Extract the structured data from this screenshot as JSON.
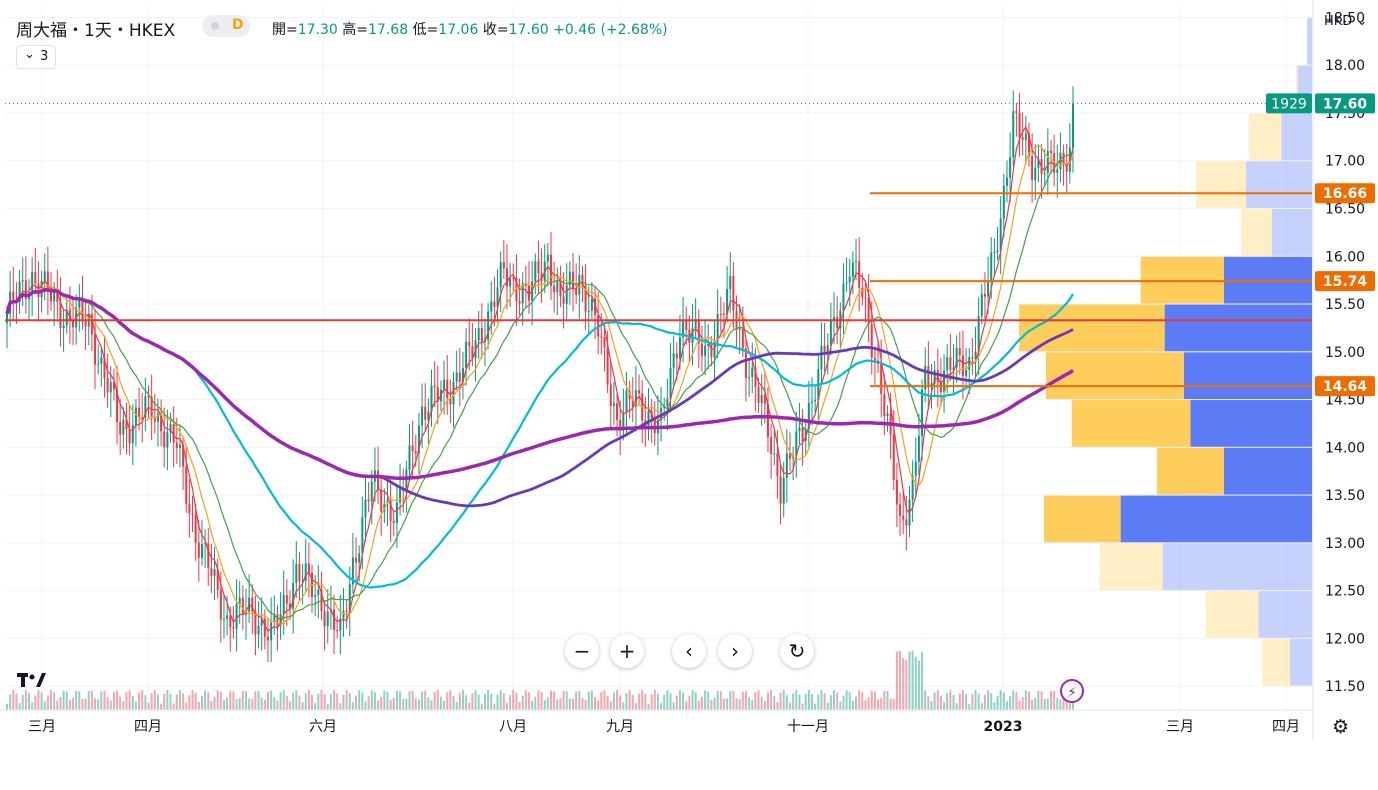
{
  "header": {
    "symbol": "周大福・1天・HKEX",
    "interval_badge": "D",
    "indicator_count": "3",
    "currency": "HKD",
    "ohlc": [
      {
        "label": "開=",
        "value": "17.30"
      },
      {
        "label": "高=",
        "value": "17.68"
      },
      {
        "label": "低=",
        "value": "17.06"
      },
      {
        "label": "收=",
        "value": "17.60"
      },
      {
        "label": "",
        "value": "+0.46 (+2.68%)"
      }
    ]
  },
  "controls": {
    "zoom_out": "−",
    "zoom_in": "+",
    "scroll_left": "‹",
    "scroll_right": "›",
    "reset": "↻"
  },
  "icons": {
    "logo": "tradingview-logo-icon",
    "bolt": "lightning-icon",
    "settings": "gear-icon"
  },
  "colors": {
    "up": "#089981",
    "down": "#f23645",
    "ma_fast": "#f23645",
    "ma_orange": "#f7a21b",
    "ma_green": "#43a047",
    "ma_cyan": "#00bcd4",
    "ma_violet": "#673ab7",
    "ma_purple": "#9c27b0",
    "hline_orange": "#ef6c00",
    "hline_red": "#e53935",
    "vp_up": "#5b7cf5",
    "vp_down": "#ffcd5c"
  },
  "chart_data": {
    "type": "candlestick",
    "y_axis": {
      "ticks": [
        "18.50",
        "18.00",
        "17.50",
        "17.00",
        "16.50",
        "16.00",
        "15.50",
        "15.00",
        "14.50",
        "14.00",
        "13.50",
        "13.00",
        "12.50",
        "12.00",
        "11.50"
      ],
      "range": [
        11.25,
        18.62
      ]
    },
    "x_axis": {
      "ticks": [
        "三月",
        "四月",
        "六月",
        "八月",
        "九月",
        "十一月",
        "2023",
        "三月",
        "四月"
      ]
    },
    "last_price": {
      "ticker_label": "1929",
      "value": "17.60"
    },
    "price_labels": [
      {
        "value": "16.66",
        "price": 16.66
      },
      {
        "value": "15.74",
        "price": 15.74
      },
      {
        "value": "14.64",
        "price": 14.64
      }
    ],
    "horizontal_lines": [
      {
        "price": 16.66,
        "color": "orange"
      },
      {
        "price": 15.74,
        "color": "orange"
      },
      {
        "price": 14.64,
        "color": "orange"
      },
      {
        "price": 15.33,
        "color": "red"
      }
    ],
    "candle_keyframes": [
      [
        0,
        15.4
      ],
      [
        8,
        15.8
      ],
      [
        18,
        15.4
      ],
      [
        26,
        15.3
      ],
      [
        36,
        14.2
      ],
      [
        46,
        14.4
      ],
      [
        54,
        14.0
      ],
      [
        60,
        13.1
      ],
      [
        70,
        12.2
      ],
      [
        78,
        12.3
      ],
      [
        84,
        12.0
      ],
      [
        92,
        12.7
      ],
      [
        100,
        12.4
      ],
      [
        106,
        12.0
      ],
      [
        110,
        12.8
      ],
      [
        116,
        13.6
      ],
      [
        124,
        13.3
      ],
      [
        132,
        14.4
      ],
      [
        140,
        14.6
      ],
      [
        148,
        15.0
      ],
      [
        158,
        15.8
      ],
      [
        166,
        15.6
      ],
      [
        172,
        16.0
      ],
      [
        176,
        15.5
      ],
      [
        182,
        15.8
      ],
      [
        188,
        15.2
      ],
      [
        194,
        14.3
      ],
      [
        200,
        14.5
      ],
      [
        208,
        14.2
      ],
      [
        214,
        15.3
      ],
      [
        222,
        15.0
      ],
      [
        230,
        15.6
      ],
      [
        236,
        14.8
      ],
      [
        242,
        14.2
      ],
      [
        246,
        13.6
      ],
      [
        252,
        14.1
      ],
      [
        262,
        15.2
      ],
      [
        268,
        15.9
      ],
      [
        272,
        15.6
      ],
      [
        276,
        15.0
      ],
      [
        280,
        14.2
      ],
      [
        284,
        13.2
      ],
      [
        288,
        13.6
      ],
      [
        292,
        14.7
      ],
      [
        298,
        14.8
      ],
      [
        306,
        14.9
      ],
      [
        314,
        16.0
      ],
      [
        320,
        17.4
      ],
      [
        326,
        17.0
      ],
      [
        334,
        16.9
      ],
      [
        340,
        17.3
      ]
    ],
    "candle_count": 340,
    "moving_averages": [
      {
        "key": "ma5",
        "period": 5,
        "color": "ma_fast",
        "width": 1.2
      },
      {
        "key": "ma10",
        "period": 10,
        "color": "ma_orange",
        "width": 1.2
      },
      {
        "key": "ma20",
        "period": 20,
        "color": "ma_green",
        "width": 1.2
      },
      {
        "key": "ma60",
        "period": 60,
        "color": "ma_cyan",
        "width": 2.2
      },
      {
        "key": "ma120",
        "period": 120,
        "color": "ma_violet",
        "width": 2.8
      },
      {
        "key": "ma250",
        "period": 250,
        "color": "ma_purple",
        "width": 3.5
      }
    ],
    "volume_profile": [
      {
        "price": 18.25,
        "up": 0.5,
        "down": 0.0
      },
      {
        "price": 17.75,
        "up": 1.5,
        "down": 0.2
      },
      {
        "price": 17.25,
        "up": 3.2,
        "down": 3.4
      },
      {
        "price": 16.75,
        "up": 6.9,
        "down": 5.2
      },
      {
        "price": 16.25,
        "up": 4.2,
        "down": 3.2
      },
      {
        "price": 15.75,
        "up": 9.2,
        "down": 8.7
      },
      {
        "price": 15.25,
        "up": 15.4,
        "down": 15.2
      },
      {
        "price": 14.75,
        "up": 13.4,
        "down": 14.4
      },
      {
        "price": 14.25,
        "up": 12.7,
        "down": 12.4
      },
      {
        "price": 13.75,
        "up": 9.2,
        "down": 7.0
      },
      {
        "price": 13.25,
        "up": 20.0,
        "down": 8.0
      },
      {
        "price": 12.75,
        "up": 15.6,
        "down": 6.6
      },
      {
        "price": 12.25,
        "up": 5.6,
        "down": 5.5
      },
      {
        "price": 11.75,
        "up": 2.3,
        "down": 2.9
      }
    ]
  }
}
